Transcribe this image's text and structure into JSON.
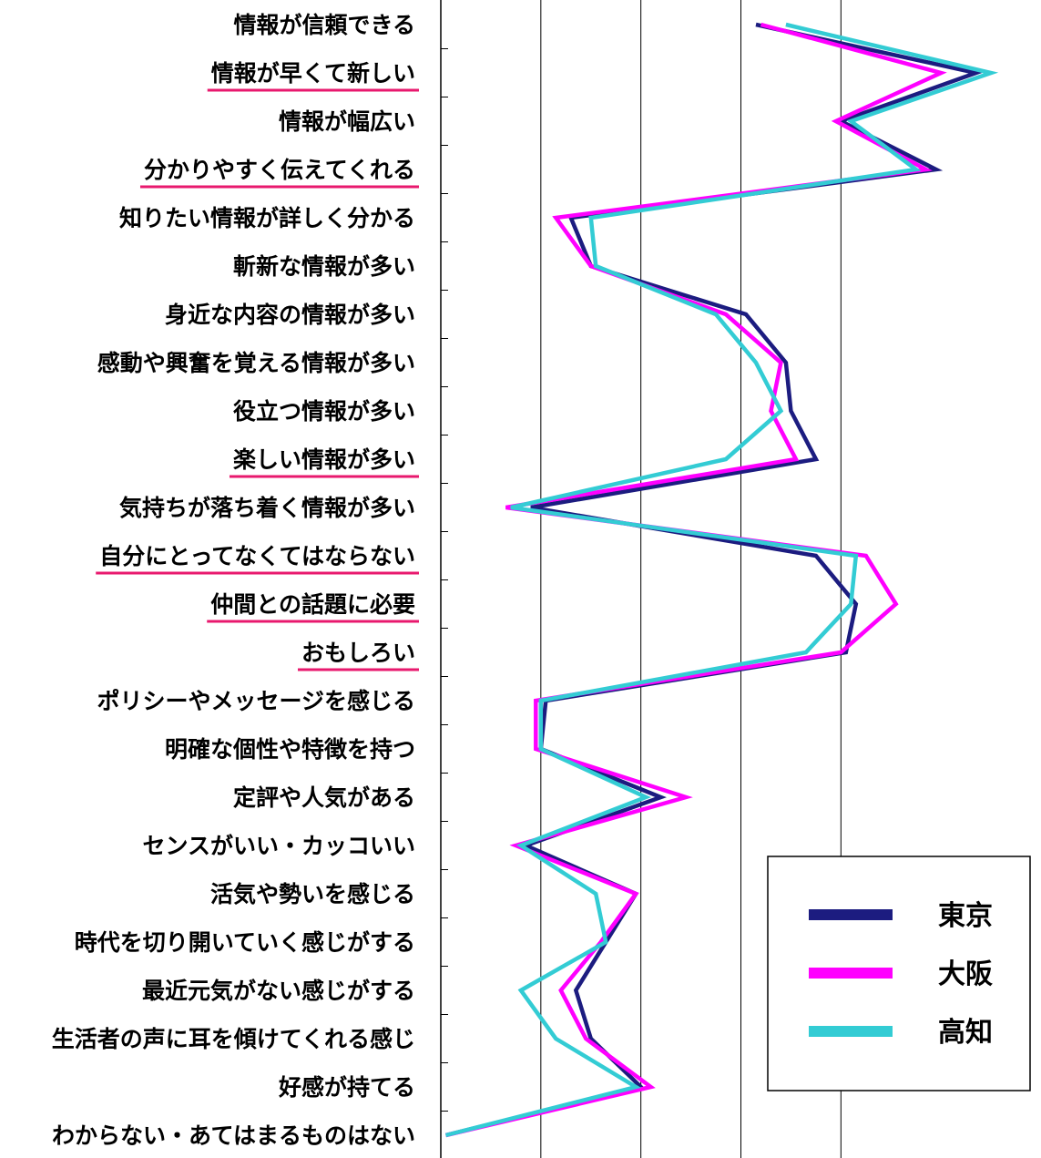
{
  "chart_data": {
    "type": "line",
    "orientation": "horizontal",
    "title": "",
    "xlabel": "",
    "ylabel": "",
    "xlim": [
      0,
      60
    ],
    "grid": true,
    "legend_position": "bottom-right",
    "categories": [
      "情報が信頼できる",
      "情報が早くて新しい",
      "情報が幅広い",
      "分かりやすく伝えてくれる",
      "知りたい情報が詳しく分かる",
      "斬新な情報が多い",
      "身近な内容の情報が多い",
      "感動や興奮を覚える情報が多い",
      "役立つ情報が多い",
      "楽しい情報が多い",
      "気持ちが落ち着く情報が多い",
      "自分にとってなくてはならない",
      "仲間との話題に必要",
      "おもしろい",
      "ポリシーやメッセージを感じる",
      "明確な個性や特徴を持つ",
      "定評や人気がある",
      "センスがいい・カッコいい",
      "活気や勢いを感じる",
      "時代を切り開いていく感じがする",
      "最近元気がない感じがする",
      "生活者の声に耳を傾けてくれる感じ",
      "好感が持てる",
      "わからない・あてはまるものはない"
    ],
    "highlighted_categories": [
      1,
      3,
      9,
      11,
      12,
      13
    ],
    "highlight_color": "#e8196e",
    "series": [
      {
        "name": "東京",
        "color": "#1c1c80",
        "values": [
          31.5,
          53.5,
          40,
          49.5,
          13,
          15,
          30.5,
          34.5,
          35,
          37.5,
          9,
          37.5,
          41.5,
          40.5,
          10.5,
          10,
          22,
          8.5,
          19.5,
          16.5,
          13.5,
          15,
          20,
          0.5
        ]
      },
      {
        "name": "大阪",
        "color": "#ff00ff",
        "values": [
          32,
          50,
          39.5,
          48.5,
          11.5,
          15,
          28.5,
          34,
          33,
          35.5,
          6.5,
          42.5,
          45.5,
          40,
          9.5,
          9.5,
          24.5,
          7.5,
          19.5,
          16,
          12,
          14.5,
          21,
          0.5
        ]
      },
      {
        "name": "高知",
        "color": "#33ccd4",
        "values": [
          34.5,
          55,
          41,
          47.5,
          15,
          15.5,
          27.5,
          31.5,
          34,
          28.5,
          7,
          41.5,
          41,
          36.5,
          10,
          10,
          20.5,
          8,
          15.5,
          16.5,
          8,
          11.5,
          19.5,
          0.5
        ]
      }
    ]
  }
}
